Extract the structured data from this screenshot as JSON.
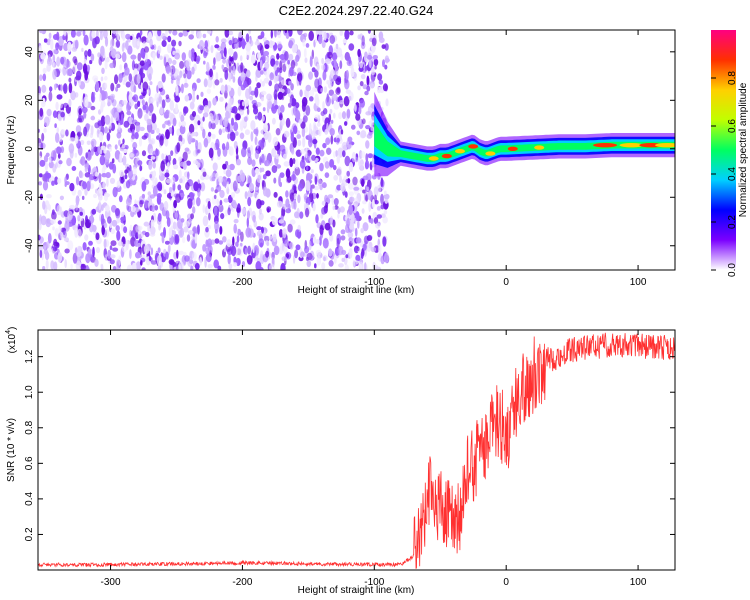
{
  "title": "C2E2.2024.297.22.40.G24",
  "chart_data": [
    {
      "type": "heatmap",
      "xlabel": "Height of straight line (km)",
      "ylabel": "Frequency (Hz)",
      "xlim": [
        -355,
        128
      ],
      "ylim": [
        -50,
        49
      ],
      "xticks": [
        -300,
        -200,
        -100,
        0,
        100
      ],
      "yticks": [
        -40,
        -20,
        0,
        20,
        40
      ],
      "noise_region_x": [
        -355,
        -90
      ],
      "ridge": {
        "x": [
          -100,
          -90,
          -80,
          -70,
          -60,
          -55,
          -50,
          -45,
          -40,
          -35,
          -30,
          -25,
          -20,
          -15,
          -10,
          -5,
          0,
          20,
          40,
          60,
          80,
          100,
          128
        ],
        "y": [
          6,
          0,
          -2,
          -3,
          -4,
          -4,
          -3,
          -3,
          -2,
          -1,
          0,
          1,
          -1,
          -2,
          -1,
          0,
          0,
          0.5,
          1,
          1,
          1.5,
          1.5,
          1.5
        ]
      },
      "colorbar": {
        "label": "Normalized spectral amplitude",
        "ticks": [
          "0.0",
          "0.2",
          "0.4",
          "0.6",
          "0.8"
        ],
        "range": [
          0,
          1
        ],
        "colors": [
          "#ffffff",
          "#7b00ff",
          "#0000ff",
          "#00d0ff",
          "#00ff60",
          "#c0ff00",
          "#ffd000",
          "#ff3000",
          "#ff0080"
        ]
      },
      "grid": false
    },
    {
      "type": "line",
      "xlabel": "Height of straight line (km)",
      "ylabel": "SNR (10 * v/v)",
      "multiplier": "(x10",
      "multiplier_exp": "4",
      "xlim": [
        -355,
        128
      ],
      "ylim": [
        0,
        1.35
      ],
      "xticks": [
        -300,
        -200,
        -100,
        0,
        100
      ],
      "yticks": [
        "0.2",
        "0.4",
        "0.6",
        "0.8",
        "1.0",
        "1.2"
      ],
      "series": [
        {
          "color": "#ff3030",
          "x": [
            -355,
            -300,
            -200,
            -100,
            -80,
            -70,
            -62,
            -58,
            -55,
            -52,
            -48,
            -45,
            -42,
            -40,
            -35,
            -30,
            -28,
            -25,
            -20,
            -15,
            -10,
            -5,
            0,
            5,
            10,
            20,
            30,
            40,
            50,
            60,
            70,
            80,
            90,
            100,
            110,
            120,
            128
          ],
          "values": [
            0.03,
            0.03,
            0.04,
            0.03,
            0.03,
            0.08,
            0.3,
            0.45,
            0.42,
            0.38,
            0.33,
            0.3,
            0.28,
            0.26,
            0.3,
            0.45,
            0.7,
            0.6,
            0.65,
            0.7,
            0.8,
            0.85,
            0.75,
            0.85,
            1.0,
            1.1,
            1.18,
            1.2,
            1.24,
            1.25,
            1.26,
            1.27,
            1.27,
            1.26,
            1.26,
            1.25,
            1.24
          ]
        }
      ],
      "grid": false
    }
  ]
}
